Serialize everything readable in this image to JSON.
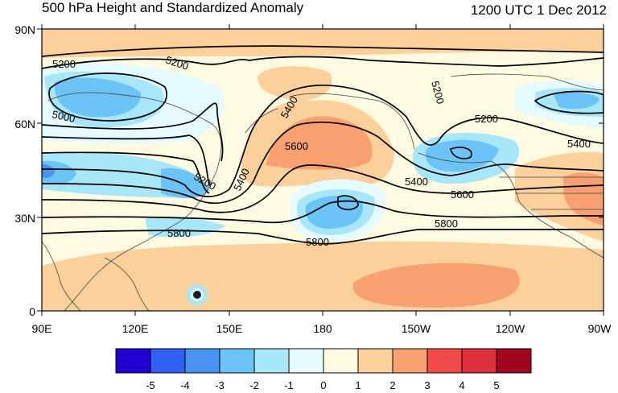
{
  "title_left": "500 hPa Height and Standardized Anomaly",
  "title_right": "1200 UTC 1 Dec 2012",
  "lat_ticks": [
    "90N",
    "60N",
    "30N",
    "0"
  ],
  "lon_ticks": [
    "90E",
    "120E",
    "150E",
    "180",
    "150W",
    "120W",
    "90W"
  ],
  "contour_labels": {
    "c1": "5200",
    "c2": "5200",
    "c3": "5000",
    "c4": "5400",
    "c5": "5200",
    "c6": "5600",
    "c7": "5200",
    "c8": "5400",
    "c9": "5200",
    "c10": "5400",
    "c11": "5400",
    "c12": "5600",
    "c13": "5800",
    "c14": "5800",
    "c15": "5800"
  },
  "colorbar": {
    "labels": [
      "-5",
      "-4",
      "-3",
      "-2",
      "-1",
      "0",
      "1",
      "2",
      "3",
      "4",
      "5"
    ],
    "colors": [
      "#1f00d0",
      "#3060f5",
      "#4a93f0",
      "#6cc3f5",
      "#a8e6fa",
      "#e6fbff",
      "#fffbe3",
      "#fbd09a",
      "#f8a070",
      "#f24a48",
      "#e0303c",
      "#a0061e"
    ]
  }
}
